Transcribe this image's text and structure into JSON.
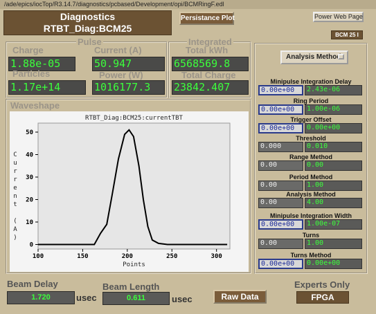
{
  "window_title": "/ade/epics/iocTop/R3.14.7/diagnostics/pcbased/Development/opi/BCMRingF.edl",
  "header": {
    "title": "Diagnostics",
    "device": "RTBT_Diag:BCM25"
  },
  "buttons": {
    "persistance_plot": "Persistance Plot",
    "power_web_page": "Power Web Page",
    "analysis_method": "Analysis Method",
    "raw_data": "Raw Data"
  },
  "device_tag": "BCM 25 I",
  "pulse": {
    "title": "Pulse",
    "charge": {
      "label": "Charge",
      "value": "1.88e-05"
    },
    "current": {
      "label": "Current (A)",
      "value": "50.947"
    },
    "particles": {
      "label": "Particles",
      "value": "1.17e+14"
    },
    "power": {
      "label": "Power (W)",
      "value": "1016177.3"
    }
  },
  "integrated": {
    "title": "Integrated",
    "total_kwh": {
      "label": "Total kWh",
      "value": "6568569.8"
    },
    "total_charge": {
      "label": "Total Charge",
      "value": "23842.407"
    }
  },
  "waveshape": {
    "title": "Waveshape",
    "plot": {
      "type": "line",
      "title": "RTBT_Diag:BCM25:currentTBT",
      "y_label": "Current (A)",
      "x_label": "Points",
      "x": [
        100,
        163,
        170,
        177,
        183,
        190,
        197,
        202,
        207,
        213,
        218,
        223,
        228,
        235,
        245,
        312
      ],
      "values": [
        0,
        0,
        5,
        9,
        22,
        38,
        49,
        51,
        48,
        35,
        20,
        8,
        2,
        0.5,
        0,
        0
      ],
      "xlim": [
        100,
        315
      ],
      "ylim": [
        -2,
        54
      ],
      "xticks": [
        100,
        150,
        200,
        250,
        300
      ],
      "yticks": [
        0,
        10,
        20,
        30,
        40,
        50
      ],
      "color": "#000000"
    }
  },
  "beam_delay": {
    "label": "Beam Delay",
    "value": "1.720",
    "unit": "usec"
  },
  "beam_length": {
    "label": "Beam Length",
    "value": "0.611",
    "unit": "usec"
  },
  "experts": {
    "label": "Experts Only",
    "button": "FPGA"
  },
  "settings": [
    {
      "label": "Minipulse Integration Delay",
      "setpoint": "0.00e+00",
      "readback": "2.43e-06"
    },
    {
      "label": "Ring Period",
      "setpoint": "0.00e+00",
      "readback": "1.00e-06"
    },
    {
      "label": "Trigger Offset",
      "setpoint": "0.00e+00",
      "readback": "0.00e+00"
    },
    {
      "label": "Threshold",
      "setpoint": "0.000",
      "readback": "0.010"
    },
    {
      "label": "Range Method",
      "setpoint": "0.00",
      "readback": "0.00"
    },
    {
      "label": "Period Method",
      "setpoint": "0.00",
      "readback": "1.00"
    },
    {
      "label": "Analysis Method",
      "setpoint": "0.00",
      "readback": "4.00"
    },
    {
      "label": "Minipulse Integration Width",
      "setpoint": "0.00e+00",
      "readback": "1.00e-07"
    },
    {
      "label": "Turns",
      "setpoint": "0.00",
      "readback": "1.00"
    },
    {
      "label": "Turns Method",
      "setpoint": "0.00e+00",
      "readback": "0.00e+00"
    }
  ]
}
